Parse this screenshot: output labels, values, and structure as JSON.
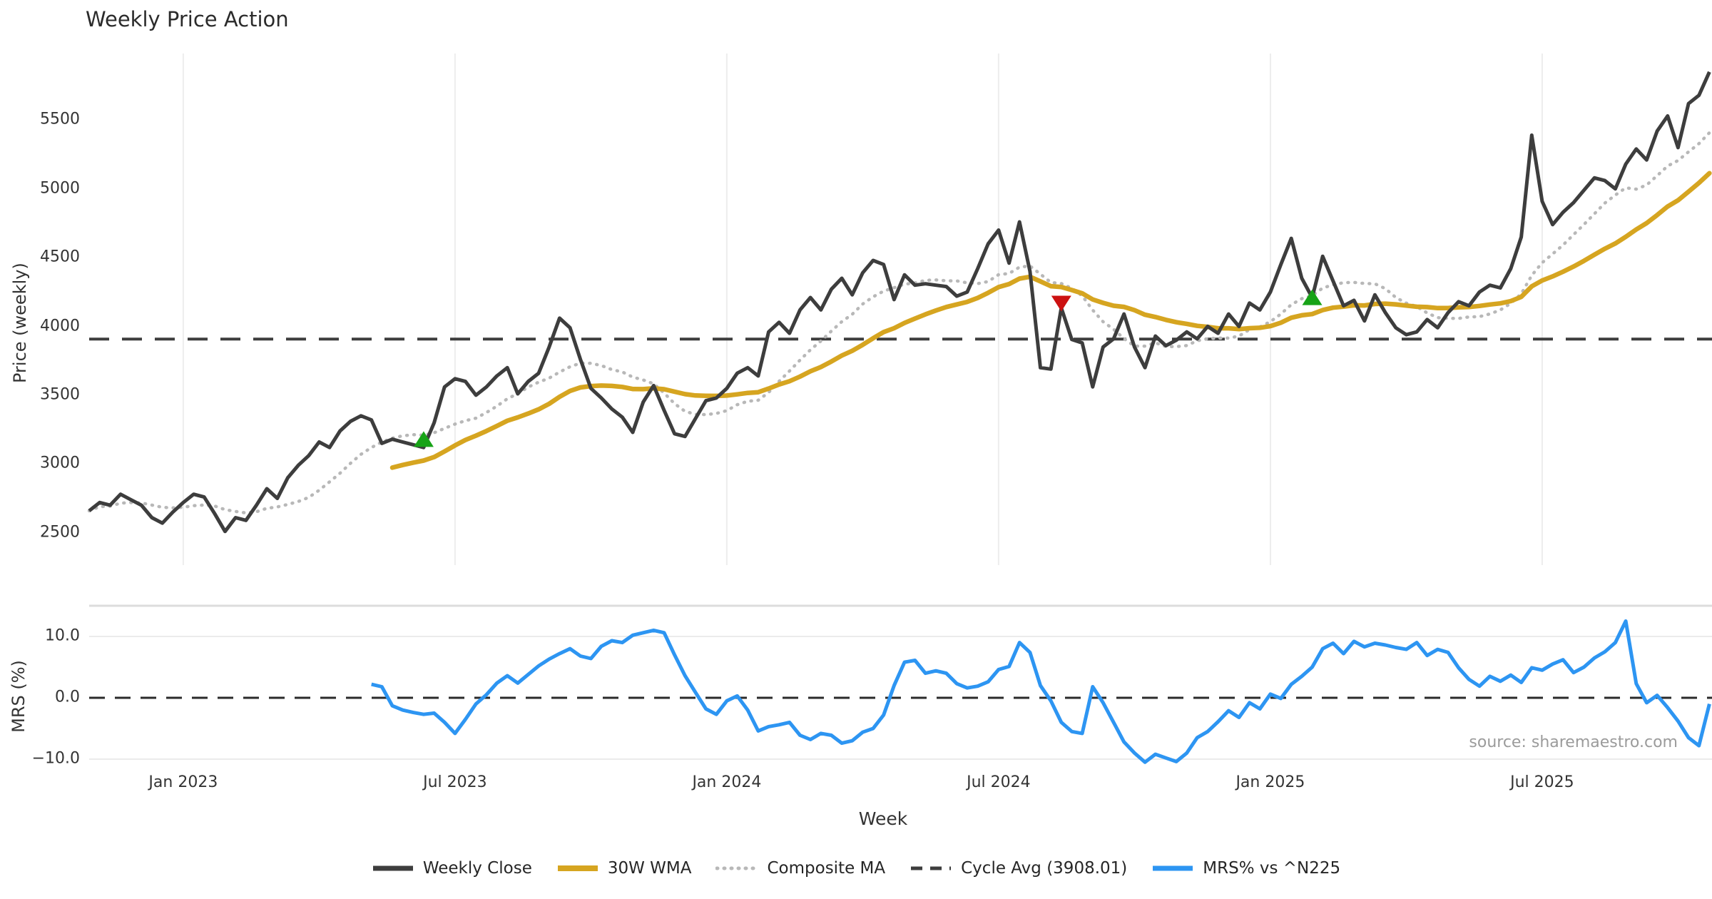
{
  "title": "Weekly Price Action",
  "axes": {
    "price_axis_label": "Price (weekly)",
    "mrs_axis_label": "MRS (%)",
    "x_axis_label": "Week",
    "price_ticks": [
      5500,
      5000,
      4500,
      4000,
      3500,
      3000,
      2500
    ],
    "mrs_ticks": [
      {
        "value": 10,
        "label": "10.0"
      },
      {
        "value": 0,
        "label": "0.0"
      },
      {
        "value": -10,
        "label": "−10.0"
      }
    ],
    "x_ticks": [
      {
        "week": 9,
        "label": "Jan 2023"
      },
      {
        "week": 35,
        "label": "Jul 2023"
      },
      {
        "week": 61,
        "label": "Jan 2024"
      },
      {
        "week": 87,
        "label": "Jul 2024"
      },
      {
        "week": 113,
        "label": "Jan 2025"
      },
      {
        "week": 139,
        "label": "Jul 2025"
      }
    ]
  },
  "source_text": "source: sharemaestro.com",
  "colors": {
    "close": "#3d3d3d",
    "wma": "#d6a520",
    "composite": "#b8b8b8",
    "cycle": "#3d3d3d",
    "mrs": "#2d95f2",
    "marker_up": "#17a317",
    "marker_down": "#cc1111",
    "gridline": "#ededed",
    "mrs_grid": "#ebebeb",
    "separator": "#dcdcdc"
  },
  "legend": [
    {
      "label": "Weekly Close",
      "style": "solid",
      "color": "#3d3d3d",
      "weight": 7
    },
    {
      "label": "30W WMA",
      "style": "solid",
      "color": "#d6a520",
      "weight": 8
    },
    {
      "label": "Composite MA",
      "style": "dotted",
      "color": "#b8b8b8",
      "weight": 5
    },
    {
      "label": "Cycle Avg (3908.01)",
      "style": "dashed",
      "color": "#3d3d3d",
      "weight": 5
    },
    {
      "label": "MRS% vs ^N225",
      "style": "solid",
      "color": "#2d95f2",
      "weight": 7
    }
  ],
  "chart_data": {
    "type": "line",
    "title": "Weekly Price Action",
    "xlabel": "Week",
    "panels": [
      {
        "name": "price",
        "ylabel": "Price (weekly)",
        "ylim": [
          2280,
          5980
        ],
        "grid": "vertical-only"
      },
      {
        "name": "mrs",
        "ylabel": "MRS (%)",
        "ylim": [
          -13.5,
          14.5
        ],
        "grid": "horizontal-10s"
      }
    ],
    "cycle_avg": 3908.01,
    "start_week": 0,
    "weeks_total": 156,
    "weekly_close": [
      2660,
      2720,
      2700,
      2780,
      2740,
      2700,
      2610,
      2570,
      2650,
      2720,
      2780,
      2760,
      2640,
      2510,
      2610,
      2590,
      2700,
      2820,
      2750,
      2900,
      2990,
      3060,
      3160,
      3120,
      3240,
      3310,
      3350,
      3320,
      3150,
      3180,
      3160,
      3140,
      3120,
      3300,
      3560,
      3620,
      3600,
      3500,
      3560,
      3640,
      3700,
      3510,
      3600,
      3660,
      3850,
      4060,
      3990,
      3760,
      3550,
      3480,
      3400,
      3340,
      3230,
      3450,
      3570,
      3390,
      3220,
      3200,
      3330,
      3460,
      3480,
      3550,
      3660,
      3700,
      3640,
      3960,
      4030,
      3950,
      4120,
      4210,
      4120,
      4270,
      4350,
      4230,
      4390,
      4480,
      4450,
      4195,
      4375,
      4300,
      4310,
      4300,
      4290,
      4220,
      4250,
      4420,
      4600,
      4700,
      4460,
      4760,
      4400,
      3700,
      3690,
      4135,
      3905,
      3880,
      3560,
      3850,
      3910,
      4090,
      3850,
      3700,
      3930,
      3860,
      3900,
      3960,
      3910,
      4000,
      3950,
      4090,
      4000,
      4170,
      4120,
      4250,
      4450,
      4640,
      4350,
      4210,
      4510,
      4330,
      4150,
      4190,
      4040,
      4230,
      4100,
      3990,
      3940,
      3960,
      4050,
      3990,
      4100,
      4180,
      4150,
      4250,
      4300,
      4280,
      4420,
      4650,
      5390,
      4910,
      4740,
      4830,
      4900,
      4990,
      5080,
      5060,
      5000,
      5180,
      5290,
      5210,
      5420,
      5530,
      5300,
      5620,
      5680,
      5850
    ],
    "wma_window": 30,
    "composite_window": 10,
    "mrs_start_week": 27,
    "mrs_pct": [
      2.2,
      1.8,
      -1.3,
      -2.0,
      -2.4,
      -2.7,
      -2.5,
      -4.0,
      -5.8,
      -3.5,
      -1.0,
      0.5,
      2.4,
      3.6,
      2.4,
      3.8,
      5.2,
      6.3,
      7.2,
      8.0,
      6.8,
      6.4,
      8.4,
      9.3,
      9.0,
      10.2,
      10.6,
      11.0,
      10.6,
      7.0,
      3.6,
      0.9,
      -1.8,
      -2.7,
      -0.5,
      0.3,
      -2.0,
      -5.4,
      -4.7,
      -4.4,
      -4.0,
      -6.1,
      -6.8,
      -5.8,
      -6.1,
      -7.4,
      -7.0,
      -5.6,
      -5.0,
      -2.8,
      2.0,
      5.8,
      6.1,
      4.0,
      4.4,
      4.0,
      2.3,
      1.6,
      1.9,
      2.6,
      4.6,
      5.1,
      9.0,
      7.4,
      2.0,
      -0.5,
      -4.0,
      -5.5,
      -5.8,
      1.8,
      -0.8,
      -4.0,
      -7.2,
      -9.0,
      -10.5,
      -9.2,
      -9.8,
      -10.4,
      -9.0,
      -6.5,
      -5.5,
      -3.9,
      -2.1,
      -3.2,
      -0.8,
      -1.8,
      0.6,
      -0.1,
      2.2,
      3.5,
      5.0,
      8.0,
      8.9,
      7.2,
      9.2,
      8.3,
      8.9,
      8.6,
      8.2,
      7.9,
      9.0,
      6.9,
      7.9,
      7.4,
      4.9,
      3.0,
      1.9,
      3.5,
      2.7,
      3.7,
      2.5,
      4.9,
      4.5,
      5.5,
      6.2,
      4.1,
      5.0,
      6.5,
      7.5,
      9.0,
      12.5,
      2.3,
      -0.8,
      0.4,
      -1.6,
      -3.8,
      -6.5,
      -7.8,
      -1.0
    ],
    "signal_markers": [
      {
        "week": 32,
        "value": 3176,
        "direction": "up"
      },
      {
        "week": 93,
        "value": 4171,
        "direction": "down"
      },
      {
        "week": 117,
        "value": 4207,
        "direction": "up"
      }
    ],
    "legend_entries": [
      "Weekly Close",
      "30W WMA",
      "Composite MA",
      "Cycle Avg (3908.01)",
      "MRS% vs ^N225"
    ],
    "legend_position": "bottom-center"
  }
}
